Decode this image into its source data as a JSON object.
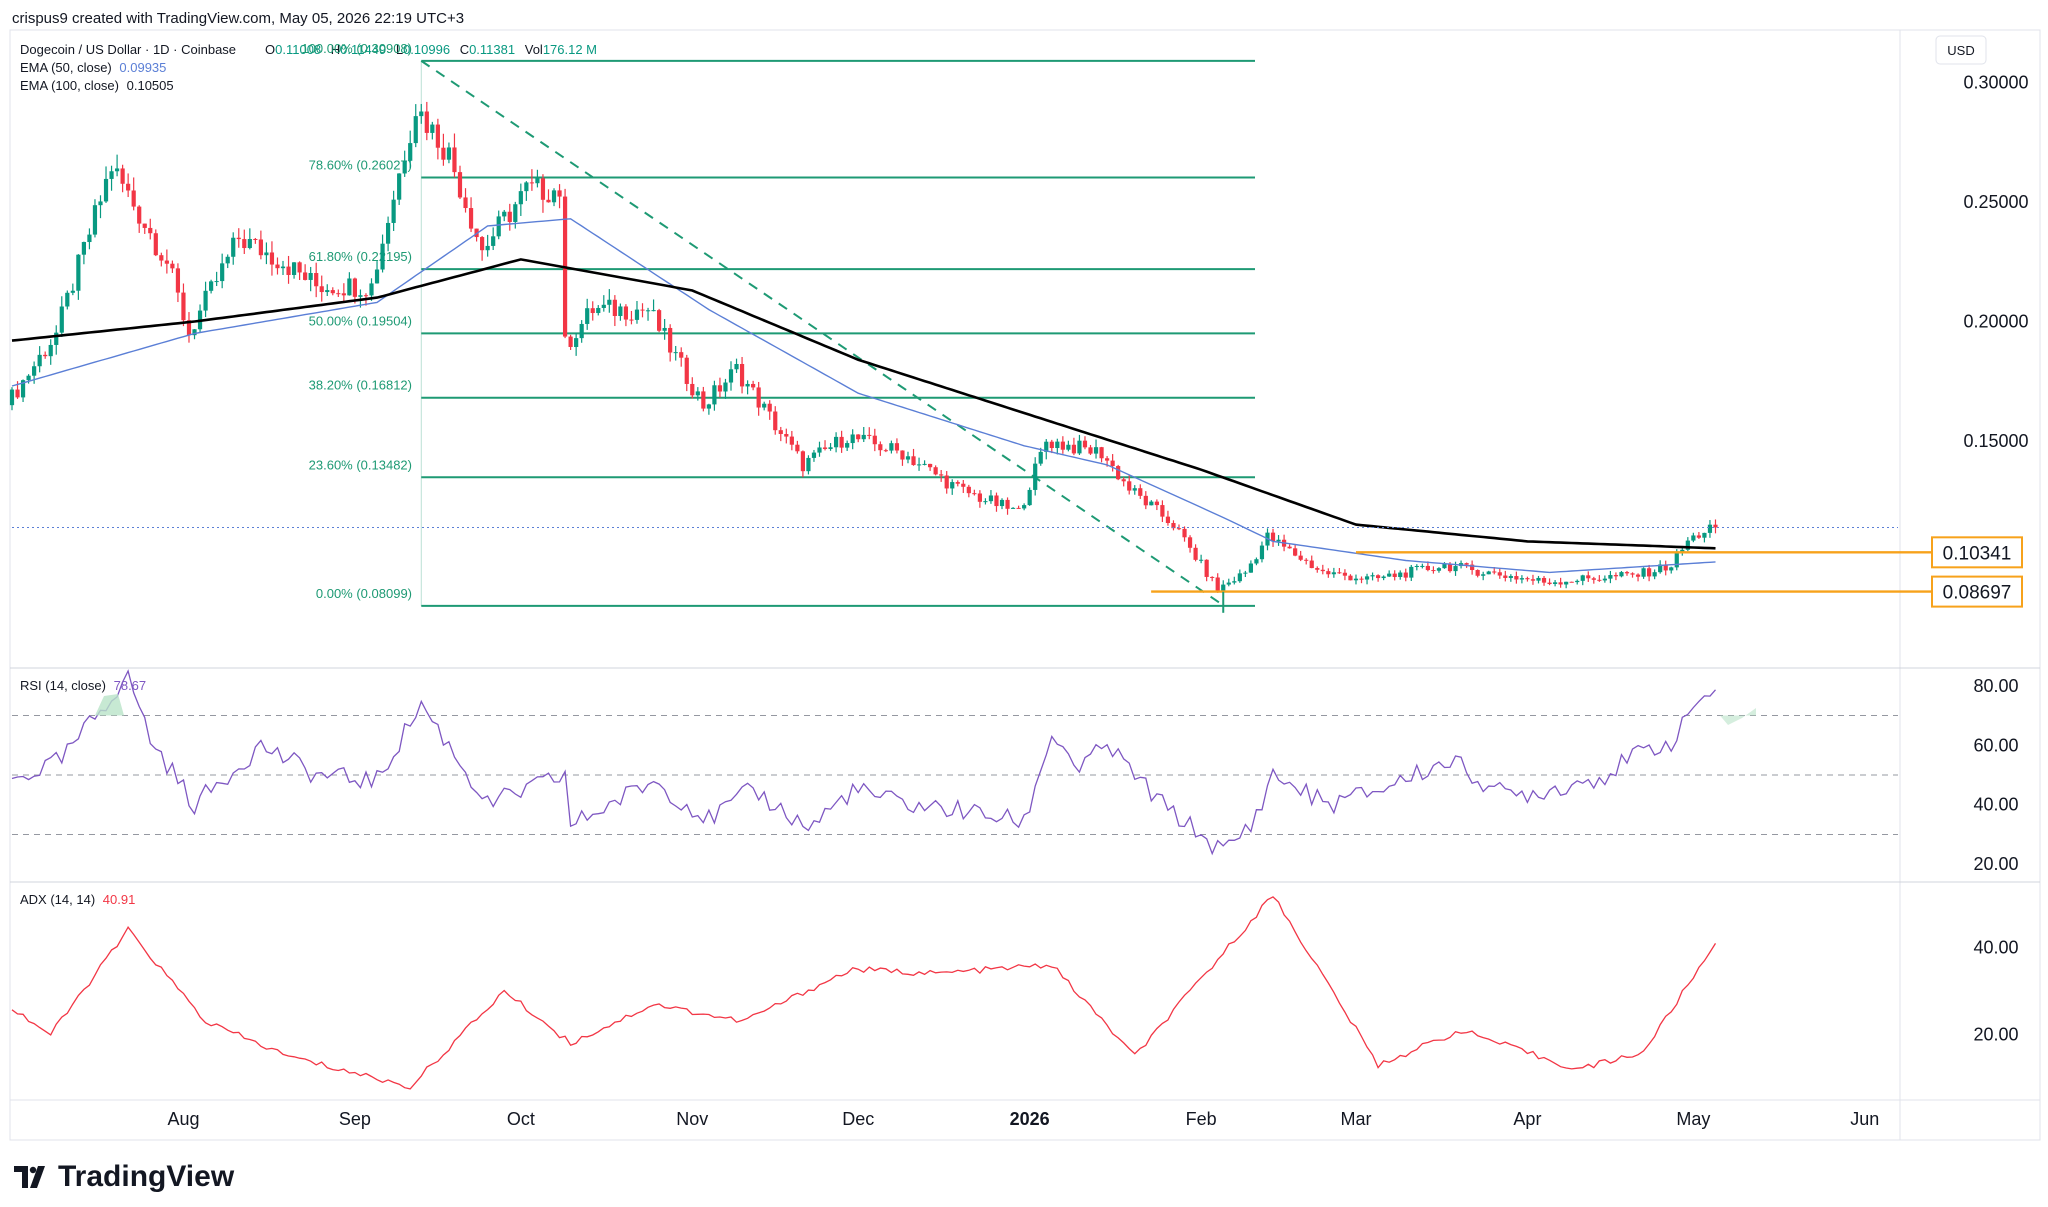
{
  "header": {
    "created_by": "crispus9 created with TradingView.com, May 05, 2026 22:19 UTC+3",
    "symbol": "Dogecoin / US Dollar · 1D · Coinbase",
    "o_label": "O",
    "o_value": "0.11008",
    "h_label": "H",
    "h_value": "0.11449",
    "l_label": "L",
    "l_value": "0.10996",
    "c_label": "C",
    "c_value": "0.11381",
    "vol_label": "Vol",
    "vol_value": "176.12 M",
    "currency": "USD"
  },
  "indicators": {
    "ema50_label": "EMA (50, close)",
    "ema50_value": "0.09935",
    "ema100_label": "EMA (100, close)",
    "ema100_value": "0.10505",
    "rsi_label": "RSI (14, close)",
    "rsi_value": "78.67",
    "adx_label": "ADX (14, 14)",
    "adx_value": "40.91"
  },
  "colors": {
    "up": "#089981",
    "down": "#f23645",
    "ema50": "#5b7fd6",
    "ema100": "#000000",
    "fib": "#1e9a74",
    "orange": "#f7a21b",
    "rsi": "#7e57c2",
    "adx": "#f23645",
    "dotted_price": "#5b7fd6"
  },
  "brand": "TradingView",
  "chart_data": [
    {
      "type": "candlestick",
      "title": "Dogecoin / US Dollar · 1D · Coinbase",
      "ylim": [
        0.055,
        0.322
      ],
      "y_ticks": [
        "0.30000",
        "0.25000",
        "0.20000",
        "0.15000"
      ],
      "x_ticks": [
        "Aug",
        "Sep",
        "Oct",
        "Nov",
        "Dec",
        "2026",
        "Feb",
        "Mar",
        "Apr",
        "May",
        "Jun"
      ],
      "price_keypoints": [
        [
          "2025-07-01",
          0.165
        ],
        [
          "2025-07-10",
          0.195
        ],
        [
          "2025-07-20",
          0.265
        ],
        [
          "2025-07-30",
          0.225
        ],
        [
          "2025-08-03",
          0.195
        ],
        [
          "2025-08-12",
          0.235
        ],
        [
          "2025-08-20",
          0.225
        ],
        [
          "2025-08-26",
          0.215
        ],
        [
          "2025-09-05",
          0.215
        ],
        [
          "2025-09-13",
          0.29
        ],
        [
          "2025-09-19",
          0.27
        ],
        [
          "2025-09-25",
          0.23
        ],
        [
          "2025-10-03",
          0.255
        ],
        [
          "2025-10-09",
          0.255
        ],
        [
          "2025-10-10",
          0.19
        ],
        [
          "2025-10-15",
          0.205
        ],
        [
          "2025-10-25",
          0.205
        ],
        [
          "2025-11-04",
          0.165
        ],
        [
          "2025-11-10",
          0.18
        ],
        [
          "2025-11-22",
          0.14
        ],
        [
          "2025-11-30",
          0.152
        ],
        [
          "2025-12-10",
          0.145
        ],
        [
          "2025-12-20",
          0.13
        ],
        [
          "2025-12-31",
          0.12
        ],
        [
          "2026-01-05",
          0.15
        ],
        [
          "2026-01-15",
          0.145
        ],
        [
          "2026-01-20",
          0.13
        ],
        [
          "2026-01-28",
          0.115
        ],
        [
          "2026-02-05",
          0.088
        ],
        [
          "2026-02-10",
          0.095
        ],
        [
          "2026-02-14",
          0.11
        ],
        [
          "2026-02-24",
          0.095
        ],
        [
          "2026-03-05",
          0.092
        ],
        [
          "2026-03-18",
          0.098
        ],
        [
          "2026-04-05",
          0.091
        ],
        [
          "2026-04-22",
          0.094
        ],
        [
          "2026-04-28",
          0.098
        ],
        [
          "2026-05-01",
          0.108
        ],
        [
          "2026-05-05",
          0.1138
        ]
      ],
      "ema_50_keypoints": [
        [
          "2025-07-01",
          0.173
        ],
        [
          "2025-08-03",
          0.195
        ],
        [
          "2025-09-05",
          0.208
        ],
        [
          "2025-09-25",
          0.24
        ],
        [
          "2025-10-10",
          0.243
        ],
        [
          "2025-11-04",
          0.205
        ],
        [
          "2025-12-01",
          0.17
        ],
        [
          "2025-12-31",
          0.148
        ],
        [
          "2026-01-15",
          0.14
        ],
        [
          "2026-02-05",
          0.118
        ],
        [
          "2026-02-14",
          0.108
        ],
        [
          "2026-03-10",
          0.1
        ],
        [
          "2026-04-05",
          0.095
        ],
        [
          "2026-05-05",
          0.0994
        ]
      ],
      "ema_100_keypoints": [
        [
          "2025-07-01",
          0.192
        ],
        [
          "2025-08-03",
          0.2
        ],
        [
          "2025-09-05",
          0.21
        ],
        [
          "2025-10-01",
          0.226
        ],
        [
          "2025-11-01",
          0.213
        ],
        [
          "2025-12-01",
          0.184
        ],
        [
          "2026-01-05",
          0.158
        ],
        [
          "2026-02-01",
          0.138
        ],
        [
          "2026-03-01",
          0.115
        ],
        [
          "2026-04-01",
          0.108
        ],
        [
          "2026-05-05",
          0.1051
        ]
      ],
      "fib_levels": [
        {
          "label": "100.00% (0.30908)",
          "value": 0.30908
        },
        {
          "label": "78.60% (0.26027)",
          "value": 0.26027
        },
        {
          "label": "61.80% (0.22195)",
          "value": 0.22195
        },
        {
          "label": "50.00% (0.19504)",
          "value": 0.19504
        },
        {
          "label": "38.20% (0.16812)",
          "value": 0.16812
        },
        {
          "label": "23.60% (0.13482)",
          "value": 0.13482
        },
        {
          "label": "0.00% (0.08099)",
          "value": 0.08099
        }
      ],
      "support_resistance": [
        {
          "label": "0.10341",
          "value": 0.10341
        },
        {
          "label": "0.08697",
          "value": 0.08697
        }
      ],
      "last_close": 0.1138
    },
    {
      "type": "line",
      "title": "RSI (14, close)",
      "ylim": [
        14,
        86
      ],
      "y_ticks": [
        "80.00",
        "60.00",
        "40.00",
        "20.00"
      ],
      "bands": [
        70,
        50,
        30
      ],
      "keypoints": [
        [
          "2025-07-01",
          48
        ],
        [
          "2025-07-10",
          55
        ],
        [
          "2025-07-22",
          84
        ],
        [
          "2025-07-26",
          62
        ],
        [
          "2025-08-03",
          40
        ],
        [
          "2025-08-15",
          60
        ],
        [
          "2025-08-25",
          50
        ],
        [
          "2025-09-05",
          48
        ],
        [
          "2025-09-13",
          74
        ],
        [
          "2025-09-25",
          40
        ],
        [
          "2025-10-09",
          50
        ],
        [
          "2025-10-10",
          33
        ],
        [
          "2025-10-25",
          48
        ],
        [
          "2025-11-04",
          35
        ],
        [
          "2025-11-12",
          45
        ],
        [
          "2025-11-22",
          32
        ],
        [
          "2025-11-30",
          45
        ],
        [
          "2025-12-10",
          40
        ],
        [
          "2025-12-20",
          38
        ],
        [
          "2025-12-31",
          34
        ],
        [
          "2026-01-05",
          64
        ],
        [
          "2026-01-10",
          52
        ],
        [
          "2026-01-15",
          60
        ],
        [
          "2026-01-25",
          40
        ],
        [
          "2026-02-05",
          24
        ],
        [
          "2026-02-10",
          33
        ],
        [
          "2026-02-14",
          50
        ],
        [
          "2026-02-24",
          40
        ],
        [
          "2026-03-05",
          45
        ],
        [
          "2026-03-18",
          55
        ],
        [
          "2026-03-28",
          43
        ],
        [
          "2026-04-05",
          45
        ],
        [
          "2026-04-15",
          50
        ],
        [
          "2026-04-22",
          58
        ],
        [
          "2026-04-28",
          62
        ],
        [
          "2026-05-01",
          74
        ],
        [
          "2026-05-05",
          78.67
        ]
      ]
    },
    {
      "type": "line",
      "title": "ADX (14, 14)",
      "ylim": [
        5,
        55
      ],
      "y_ticks": [
        "40.00",
        "20.00"
      ],
      "keypoints": [
        [
          "2025-07-01",
          26
        ],
        [
          "2025-07-08",
          20
        ],
        [
          "2025-07-22",
          44
        ],
        [
          "2025-08-05",
          23
        ],
        [
          "2025-08-20",
          15
        ],
        [
          "2025-09-11",
          8
        ],
        [
          "2025-09-28",
          30
        ],
        [
          "2025-10-10",
          18
        ],
        [
          "2025-10-25",
          27
        ],
        [
          "2025-11-10",
          23
        ],
        [
          "2025-11-30",
          35
        ],
        [
          "2025-12-15",
          34
        ],
        [
          "2026-01-05",
          36
        ],
        [
          "2026-01-20",
          15
        ],
        [
          "2026-02-14",
          52
        ],
        [
          "2026-03-05",
          13
        ],
        [
          "2026-03-20",
          21
        ],
        [
          "2026-04-10",
          12
        ],
        [
          "2026-04-22",
          16
        ],
        [
          "2026-05-05",
          40.91
        ]
      ]
    }
  ]
}
